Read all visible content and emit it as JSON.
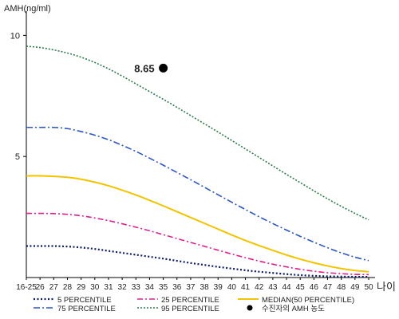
{
  "chart_data": {
    "type": "line",
    "ylabel": "AMH(ng/ml)",
    "xlabel": "나이",
    "ylim": [
      0,
      11
    ],
    "y_ticks": [
      5,
      10
    ],
    "grid": false,
    "x": [
      "16-25",
      "26",
      "27",
      "28",
      "29",
      "30",
      "31",
      "32",
      "33",
      "34",
      "35",
      "36",
      "37",
      "38",
      "39",
      "40",
      "41",
      "42",
      "43",
      "44",
      "45",
      "46",
      "47",
      "48",
      "49",
      "50"
    ],
    "series": [
      {
        "name": "5 PERCENTILE",
        "color": "#0a1a6b",
        "dash": "2,2.5",
        "width": 2.2,
        "values": [
          1.3,
          1.3,
          1.3,
          1.28,
          1.24,
          1.18,
          1.1,
          1.02,
          0.94,
          0.86,
          0.78,
          0.69,
          0.6,
          0.52,
          0.44,
          0.37,
          0.3,
          0.24,
          0.19,
          0.14,
          0.1,
          0.07,
          0.05,
          0.04,
          0.03,
          0.03
        ]
      },
      {
        "name": "25 PERCENTILE",
        "color": "#e0208a",
        "dash": "7,3,2,3",
        "width": 1.6,
        "values": [
          2.65,
          2.65,
          2.64,
          2.61,
          2.55,
          2.46,
          2.35,
          2.22,
          2.08,
          1.93,
          1.77,
          1.61,
          1.45,
          1.29,
          1.13,
          0.97,
          0.82,
          0.68,
          0.55,
          0.44,
          0.34,
          0.26,
          0.2,
          0.16,
          0.13,
          0.12
        ]
      },
      {
        "name": "MEDIAN(50 PERCENTILE)",
        "color": "#f2c400",
        "dash": "",
        "width": 2,
        "values": [
          4.2,
          4.2,
          4.18,
          4.14,
          4.06,
          3.94,
          3.79,
          3.61,
          3.41,
          3.19,
          2.96,
          2.72,
          2.48,
          2.24,
          2.0,
          1.76,
          1.53,
          1.32,
          1.12,
          0.93,
          0.76,
          0.61,
          0.48,
          0.37,
          0.29,
          0.24
        ]
      },
      {
        "name": "75 PERCENTILE",
        "color": "#2a55c8",
        "dash": "8,3,2,3",
        "width": 1.6,
        "values": [
          6.2,
          6.2,
          6.2,
          6.15,
          6.03,
          5.88,
          5.69,
          5.46,
          5.21,
          4.93,
          4.64,
          4.34,
          4.04,
          3.73,
          3.42,
          3.11,
          2.81,
          2.51,
          2.23,
          1.96,
          1.7,
          1.46,
          1.23,
          1.02,
          0.84,
          0.7
        ]
      },
      {
        "name": "95 PERCENTILE",
        "color": "#2a7a4a",
        "dash": "2,2",
        "width": 1.6,
        "values": [
          9.55,
          9.5,
          9.4,
          9.27,
          9.1,
          8.88,
          8.62,
          8.32,
          8.0,
          7.68,
          7.36,
          7.03,
          6.69,
          6.35,
          6.01,
          5.66,
          5.31,
          4.96,
          4.61,
          4.26,
          3.92,
          3.58,
          3.25,
          2.94,
          2.65,
          2.38
        ]
      }
    ],
    "point": {
      "name": "수진자의 AMH 농도",
      "x": "35",
      "y": 8.65,
      "label": "8.65",
      "color": "#000000"
    },
    "legend": "bottom"
  }
}
